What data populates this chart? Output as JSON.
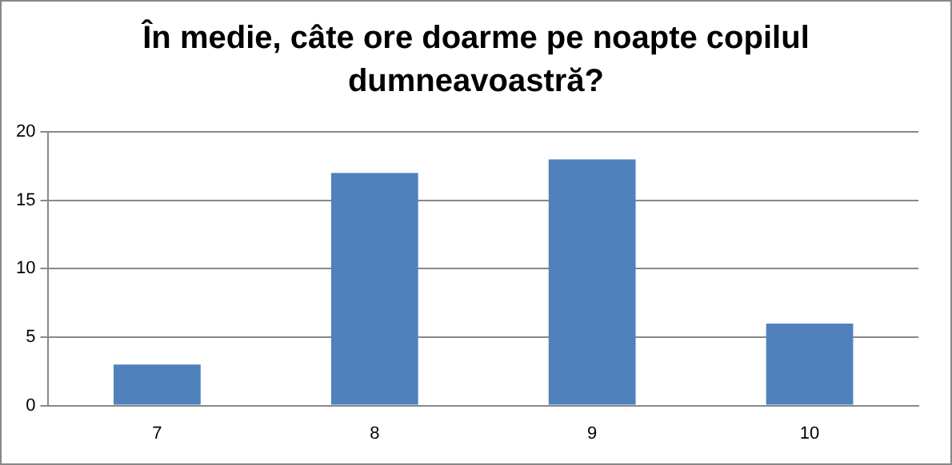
{
  "chart_data": {
    "type": "bar",
    "title": "În medie, câte ore doarme pe noapte copilul dumneavoastră?",
    "categories": [
      "7",
      "8",
      "9",
      "10"
    ],
    "values": [
      3,
      17,
      18,
      6
    ],
    "color": "#4f81bd",
    "ylim": [
      0,
      20
    ],
    "yticks": [
      0,
      5,
      10,
      15,
      20
    ],
    "grid": "y"
  }
}
